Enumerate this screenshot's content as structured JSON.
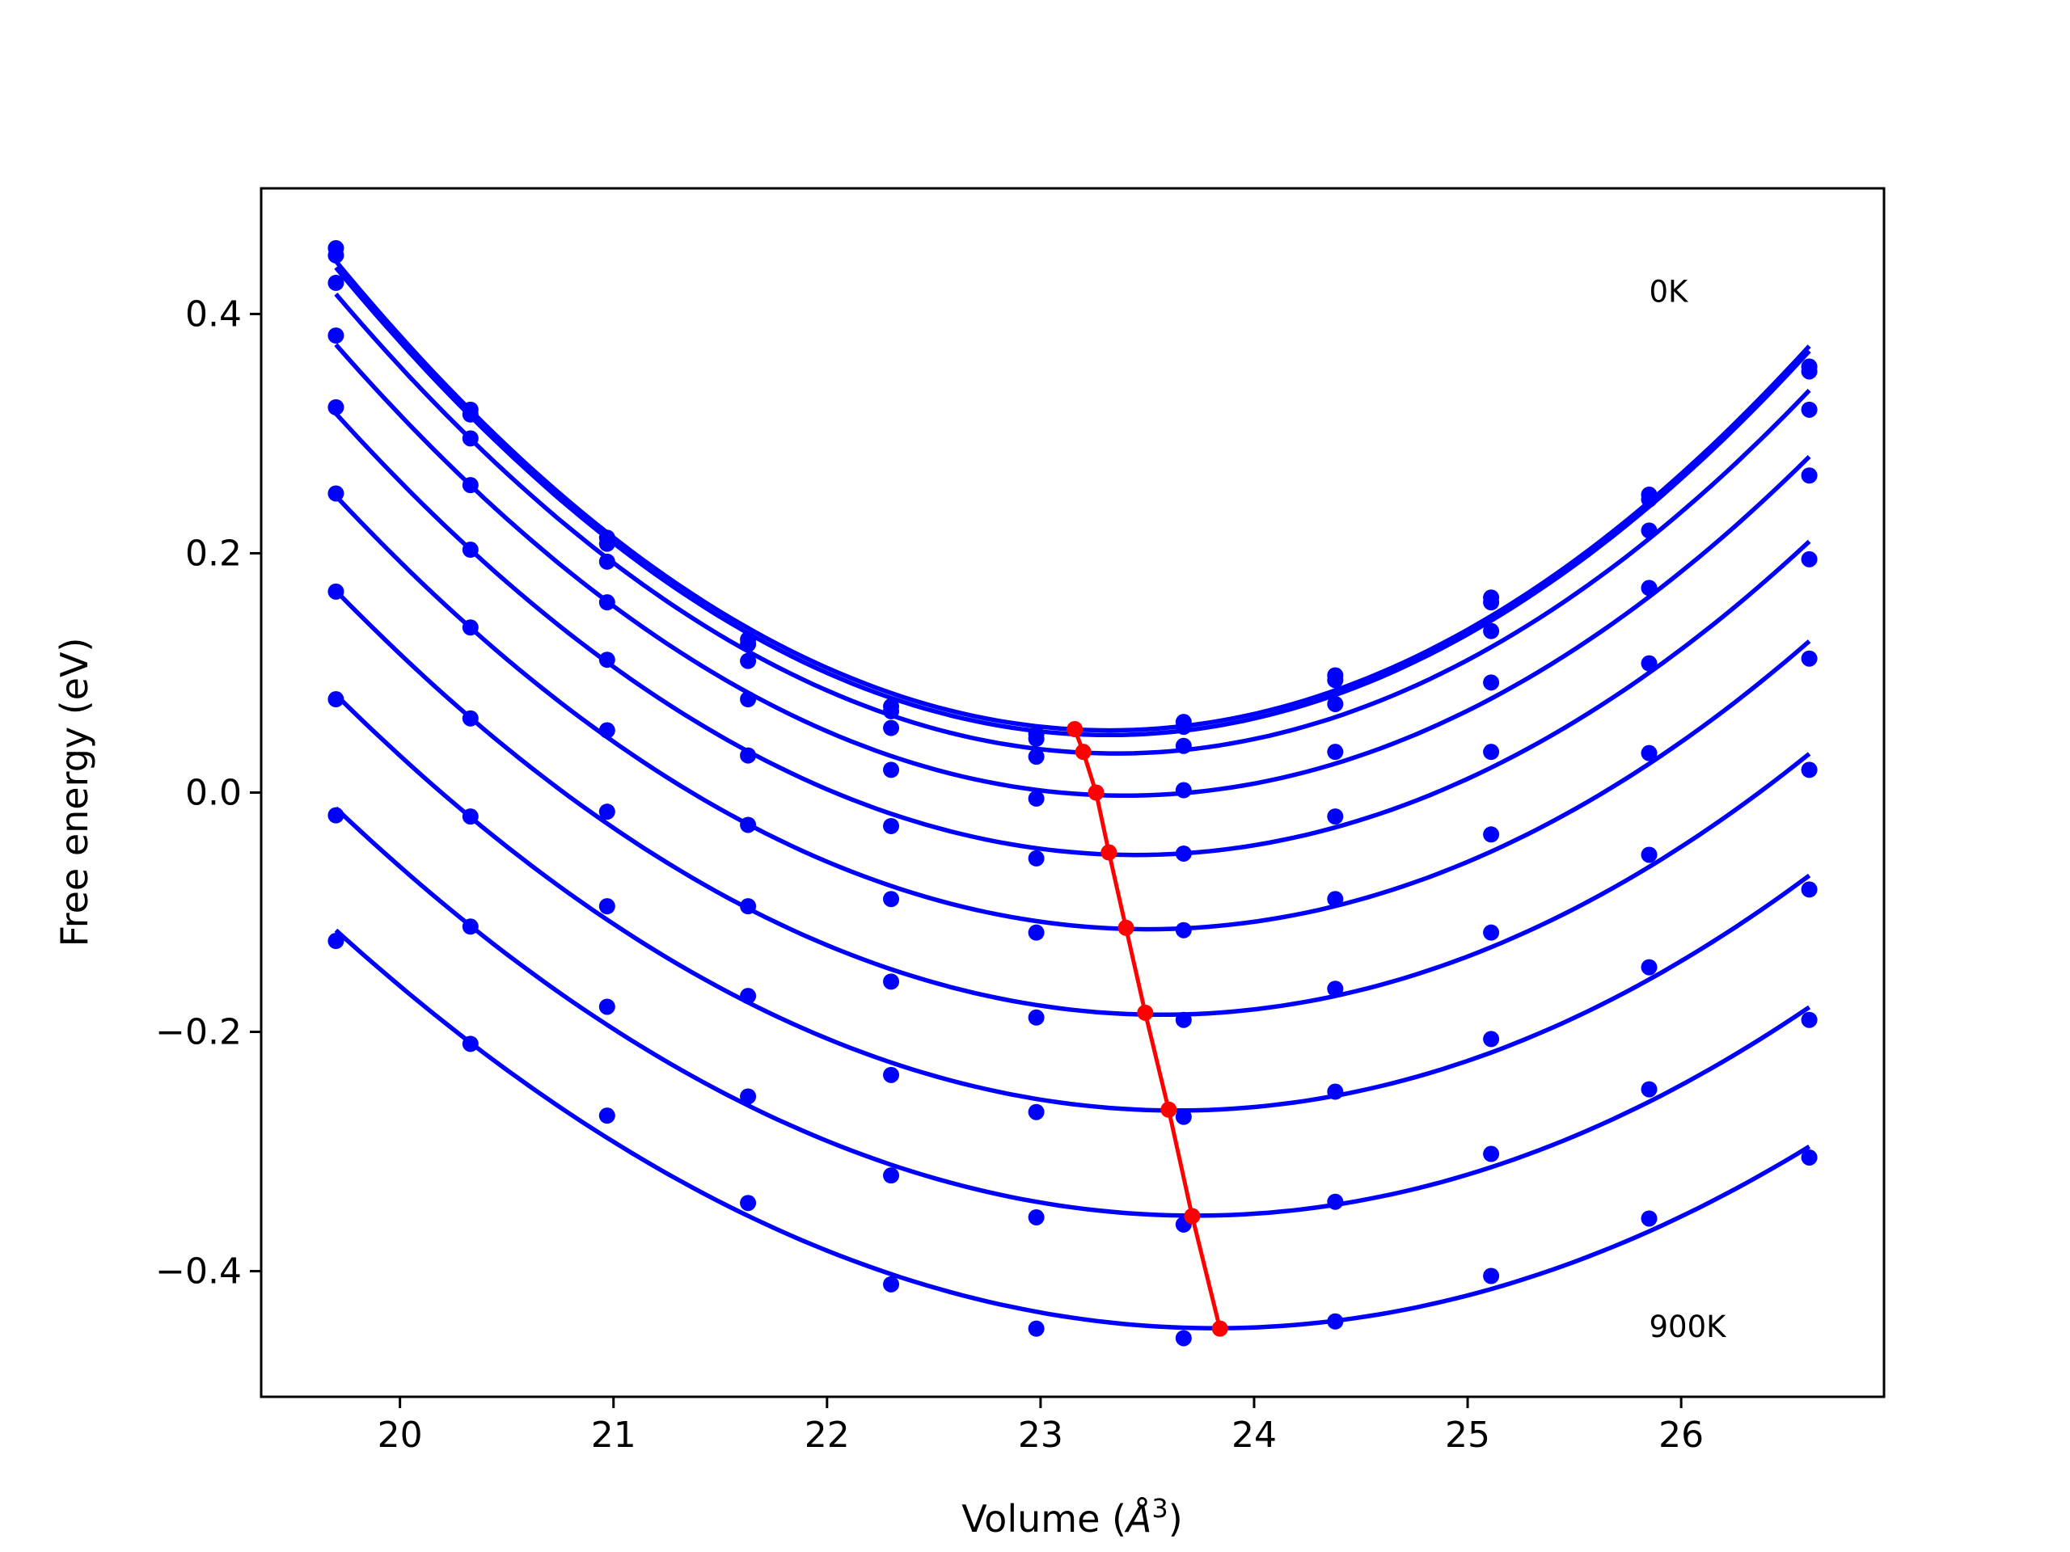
{
  "chart_data": {
    "type": "scatter",
    "xlabel": "Volume (Å³)",
    "xlabel_parts": {
      "prefix": "Volume (",
      "unit": "Å",
      "sup": "3",
      "suffix": ")"
    },
    "ylabel": "Free energy (eV)",
    "xlim": [
      19.35,
      26.95
    ],
    "ylim": [
      -0.505,
      0.505
    ],
    "xticks": [
      20,
      21,
      22,
      23,
      24,
      25,
      26
    ],
    "xtick_labels": [
      "20",
      "21",
      "22",
      "23",
      "24",
      "25",
      "26"
    ],
    "yticks": [
      0.4,
      0.2,
      0.0,
      -0.2,
      -0.4
    ],
    "ytick_labels": [
      "0.4",
      "0.2",
      "0.0",
      "−0.2",
      "−0.4"
    ],
    "grid": false,
    "annotations": [
      {
        "text": "0K",
        "x": 25.85,
        "y": 0.41
      },
      {
        "text": "900K",
        "x": 25.85,
        "y": -0.455
      }
    ],
    "point_color": "#0000ff",
    "fit_color": "#0000ff",
    "minimum_color": "#ff0000",
    "x": [
      19.7,
      20.33,
      20.97,
      21.63,
      22.3,
      22.98,
      23.67,
      24.38,
      25.11,
      25.85,
      26.6
    ],
    "series": [
      {
        "data_points": [
          0.455,
          0.32,
          0.213,
          0.128,
          0.072,
          0.049,
          0.059,
          0.098,
          0.163,
          0.249,
          0.356
        ],
        "fit_min": [
          23.16,
          0.053
        ]
      },
      {
        "data_points": [
          0.449,
          0.316,
          0.208,
          0.124,
          0.068,
          0.045,
          0.055,
          0.094,
          0.159,
          0.245,
          0.352
        ],
        "fit_min": [
          23.16,
          0.053
        ]
      },
      {
        "data_points": [
          0.426,
          0.296,
          0.193,
          0.11,
          0.054,
          0.03,
          0.039,
          0.074,
          0.135,
          0.219,
          0.32
        ],
        "fit_min": [
          23.2,
          0.034
        ]
      },
      {
        "data_points": [
          0.382,
          0.257,
          0.159,
          0.078,
          0.019,
          -0.005,
          0.002,
          0.034,
          0.092,
          0.171,
          0.265
        ],
        "fit_min": [
          23.26,
          0.0
        ]
      },
      {
        "data_points": [
          0.322,
          0.203,
          0.111,
          0.031,
          -0.028,
          -0.055,
          -0.051,
          -0.02,
          0.034,
          0.108,
          0.195
        ],
        "fit_min": [
          23.32,
          -0.05
        ]
      },
      {
        "data_points": [
          0.25,
          0.138,
          0.052,
          -0.027,
          -0.089,
          -0.117,
          -0.115,
          -0.089,
          -0.035,
          0.033,
          0.112
        ],
        "fit_min": [
          23.4,
          -0.113
        ]
      },
      {
        "data_points": [
          0.168,
          0.062,
          -0.016,
          -0.095,
          -0.158,
          -0.188,
          -0.19,
          -0.164,
          -0.117,
          -0.052,
          0.019
        ],
        "fit_min": [
          23.49,
          -0.184
        ]
      },
      {
        "data_points": [
          0.078,
          -0.02,
          -0.095,
          -0.17,
          -0.236,
          -0.267,
          -0.271,
          -0.25,
          -0.206,
          -0.146,
          -0.081
        ],
        "fit_min": [
          23.6,
          -0.265
        ]
      },
      {
        "data_points": [
          -0.019,
          -0.112,
          -0.179,
          -0.254,
          -0.32,
          -0.355,
          -0.361,
          -0.342,
          -0.302,
          -0.248,
          -0.19
        ],
        "fit_min": [
          23.71,
          -0.354
        ]
      },
      {
        "data_points": [
          -0.124,
          -0.21,
          -0.27,
          -0.343,
          -0.411,
          -0.448,
          -0.456,
          -0.442,
          -0.404,
          -0.356,
          -0.305
        ],
        "fit_min": [
          23.84,
          -0.448
        ]
      }
    ],
    "minimum_path": {
      "x": [
        23.16,
        23.2,
        23.26,
        23.32,
        23.4,
        23.49,
        23.6,
        23.71,
        23.84
      ],
      "y": [
        0.053,
        0.034,
        0.0,
        -0.05,
        -0.113,
        -0.184,
        -0.265,
        -0.354,
        -0.448
      ]
    }
  }
}
